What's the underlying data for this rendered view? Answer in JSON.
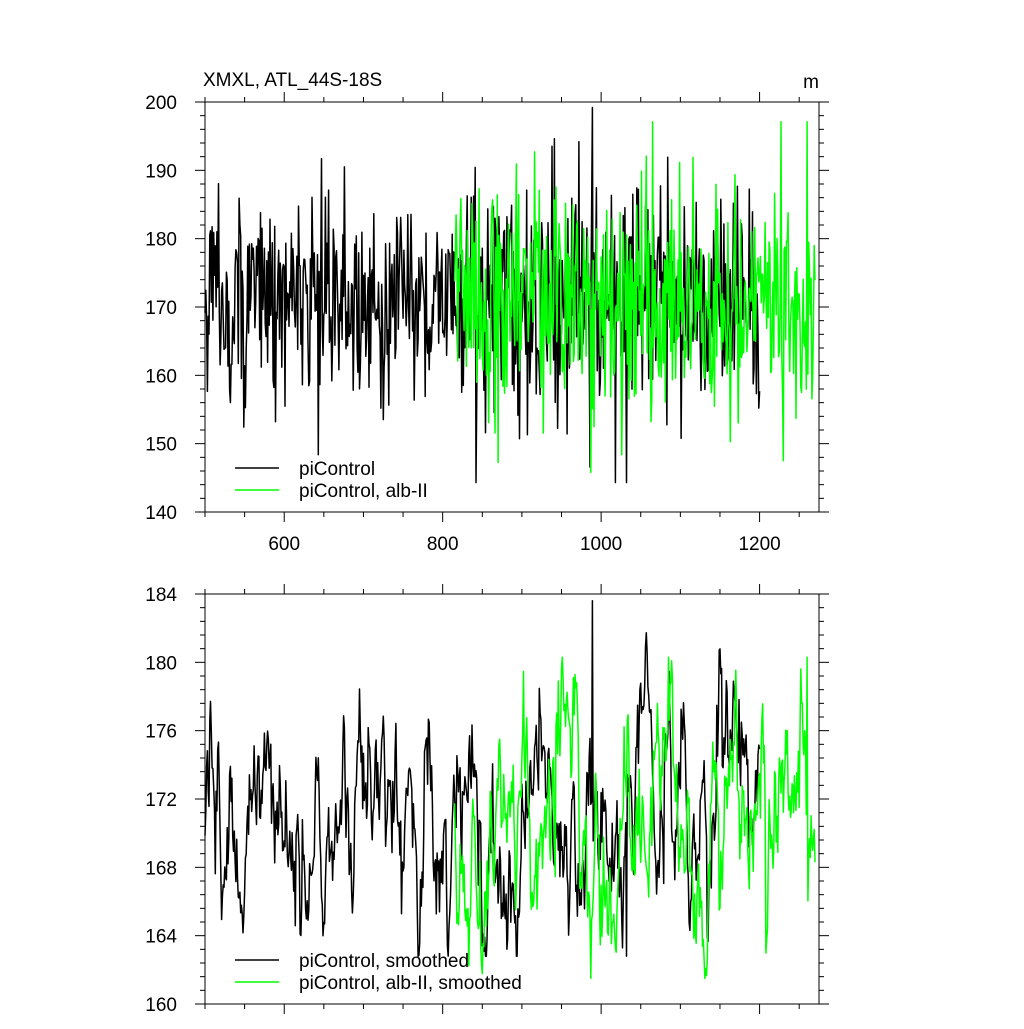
{
  "chart_data": [
    {
      "type": "line",
      "title_left": "XMXL, ATL_44S-18S",
      "title_right": "m",
      "xlabel": "",
      "ylabel": "",
      "xlim": [
        500,
        1275
      ],
      "ylim": [
        140,
        200
      ],
      "x_ticks": [
        600,
        800,
        1000,
        1200
      ],
      "x_tick_labels": [
        "600",
        "800",
        "1000",
        "1200"
      ],
      "y_ticks": [
        140,
        150,
        160,
        170,
        180,
        190,
        200
      ],
      "y_tick_labels": [
        "140",
        "150",
        "160",
        "170",
        "180",
        "190",
        "200"
      ],
      "legend_position": "bottom-left",
      "series": [
        {
          "name": "piControl",
          "color": "#000000",
          "x_start": 500,
          "x_end": 1200,
          "mean": 171,
          "amplitude": 8,
          "min": 144.3,
          "max": 199.2
        },
        {
          "name": "piControl, alb-II",
          "color": "#00ff00",
          "x_start": 815,
          "x_end": 1270,
          "mean": 170.5,
          "amplitude": 8.5,
          "min": 145.8,
          "max": 197.1
        }
      ]
    },
    {
      "type": "line",
      "title_left": "",
      "title_right": "",
      "xlabel": "",
      "ylabel": "",
      "xlim": [
        500,
        1275
      ],
      "ylim": [
        160,
        184
      ],
      "x_ticks": [
        600,
        800,
        1000,
        1200
      ],
      "x_tick_labels": [],
      "y_ticks": [
        160,
        164,
        168,
        172,
        176,
        180,
        184
      ],
      "y_tick_labels": [
        "160",
        "164",
        "168",
        "172",
        "176",
        "180",
        "184"
      ],
      "legend_position": "bottom-left",
      "series": [
        {
          "name": "piControl, smoothed",
          "color": "#000000",
          "x_start": 500,
          "x_end": 1200,
          "mean": 171,
          "amplitude": 3.5,
          "min": 162.8,
          "max": 183.6
        },
        {
          "name": "piControl, alb-II, smoothed",
          "color": "#00ff00",
          "x_start": 815,
          "x_end": 1270,
          "mean": 170.5,
          "amplitude": 3.8,
          "min": 161.5,
          "max": 180.3
        }
      ]
    }
  ]
}
